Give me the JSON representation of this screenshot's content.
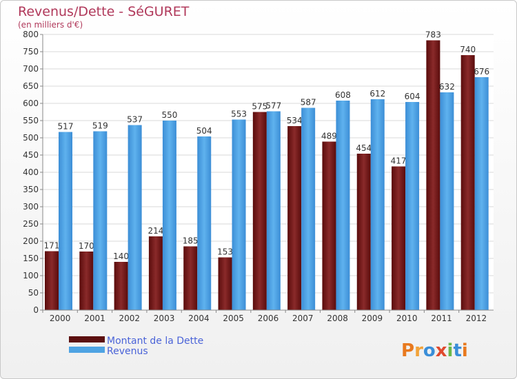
{
  "chart_data": {
    "type": "bar",
    "title": "Revenus/Dette - SéGURET",
    "subtitle": "(en milliers d'€)",
    "categories": [
      "2000",
      "2001",
      "2002",
      "2003",
      "2004",
      "2005",
      "2006",
      "2007",
      "2008",
      "2009",
      "2010",
      "2011",
      "2012"
    ],
    "series": [
      {
        "name": "Montant de la Dette",
        "color": "#7a1a1a",
        "values": [
          171,
          170,
          140,
          214,
          185,
          153,
          575,
          534,
          489,
          454,
          417,
          783,
          740
        ]
      },
      {
        "name": "Revenus",
        "color": "#4fa3e3",
        "values": [
          517,
          519,
          537,
          550,
          504,
          553,
          577,
          587,
          608,
          612,
          604,
          632,
          676
        ]
      }
    ],
    "ylim": [
      0,
      800
    ],
    "yticks": [
      0,
      50,
      100,
      150,
      200,
      250,
      300,
      350,
      400,
      450,
      500,
      550,
      600,
      650,
      700,
      750,
      800
    ],
    "grid": true,
    "legend_position": "bottom-left"
  },
  "brand": "Proxiti"
}
